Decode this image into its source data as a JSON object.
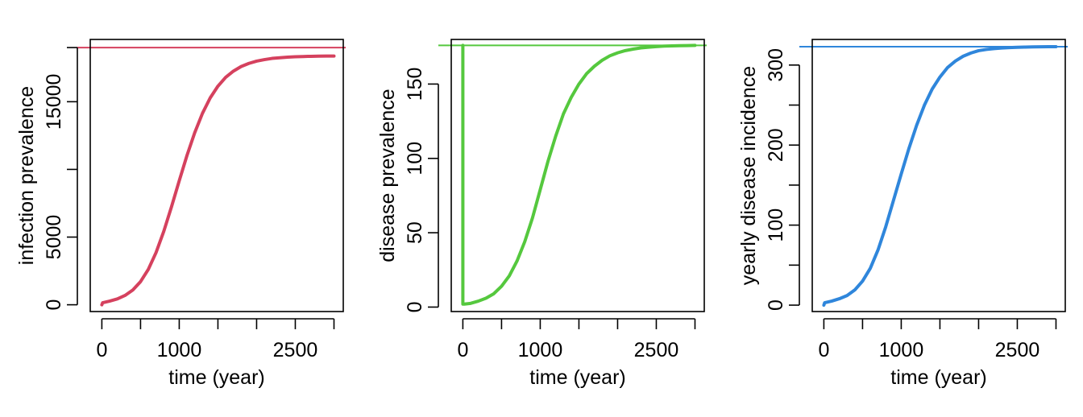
{
  "chart_data": [
    {
      "type": "line",
      "xlabel": "time (year)",
      "ylabel": "infection prevalence",
      "xlim": [
        -150,
        3120
      ],
      "ylim": [
        -500,
        19600
      ],
      "x_ticks": [
        0,
        500,
        1000,
        1500,
        2000,
        2500,
        3000
      ],
      "x_tick_labels": [
        "0",
        "",
        "1000",
        "",
        "",
        "2500",
        ""
      ],
      "y_ticks": [
        0,
        5000,
        10000,
        15000,
        19000
      ],
      "y_tick_labels": [
        "0",
        "5000",
        "",
        "15000",
        ""
      ],
      "grid": false,
      "color": "#d5415e",
      "reference_line": {
        "y": 19000
      },
      "series": [
        {
          "x": [
            0,
            10,
            100,
            200,
            300,
            400,
            500,
            600,
            700,
            800,
            900,
            1000,
            1100,
            1200,
            1300,
            1400,
            1500,
            1600,
            1700,
            1800,
            1900,
            2000,
            2100,
            2200,
            2300,
            2400,
            2500,
            2600,
            2700,
            2800,
            2900,
            3000
          ],
          "y": [
            0,
            150,
            270,
            430,
            690,
            1090,
            1710,
            2610,
            3850,
            5420,
            7240,
            9160,
            11030,
            12710,
            14140,
            15280,
            16150,
            16800,
            17260,
            17600,
            17830,
            18000,
            18110,
            18200,
            18250,
            18290,
            18320,
            18340,
            18355,
            18365,
            18372,
            18375
          ]
        }
      ]
    },
    {
      "type": "line",
      "xlabel": "time (year)",
      "ylabel": "disease prevalence",
      "xlim": [
        -150,
        3120
      ],
      "ylim": [
        -3,
        180
      ],
      "x_ticks": [
        0,
        500,
        1000,
        1500,
        2000,
        2500,
        3000
      ],
      "x_tick_labels": [
        "0",
        "",
        "1000",
        "",
        "",
        "2500",
        ""
      ],
      "y_ticks": [
        0,
        50,
        100,
        150
      ],
      "y_tick_labels": [
        "0",
        "50",
        "100",
        "150"
      ],
      "grid": false,
      "color": "#55c83e",
      "reference_line": {
        "y": 176
      },
      "series": [
        {
          "x": [
            0,
            0.1,
            20,
            100,
            200,
            300,
            400,
            500,
            600,
            700,
            800,
            900,
            1000,
            1100,
            1200,
            1300,
            1400,
            1500,
            1600,
            1700,
            1800,
            1900,
            2000,
            2100,
            2200,
            2300,
            2400,
            2500,
            2600,
            2700,
            2800,
            2900,
            3000
          ],
          "y": [
            176,
            2,
            2,
            2.5,
            4,
            6,
            9,
            14,
            21,
            31,
            44,
            60,
            79,
            98,
            115,
            130,
            141,
            150,
            157,
            162,
            166,
            169,
            171,
            172.5,
            173.5,
            174.3,
            174.8,
            175.2,
            175.5,
            175.7,
            175.8,
            175.9,
            176
          ]
        }
      ]
    },
    {
      "type": "line",
      "xlabel": "time (year)",
      "ylabel": "yearly disease incidence",
      "xlim": [
        -150,
        3120
      ],
      "ylim": [
        -8,
        332
      ],
      "x_ticks": [
        0,
        500,
        1000,
        1500,
        2000,
        2500,
        3000
      ],
      "x_tick_labels": [
        "0",
        "",
        "1000",
        "",
        "",
        "2500",
        ""
      ],
      "y_ticks": [
        0,
        50,
        100,
        150,
        200,
        250,
        300
      ],
      "y_tick_labels": [
        "0",
        "",
        "100",
        "",
        "200",
        "",
        "300"
      ],
      "grid": false,
      "color": "#2f86db",
      "reference_line": {
        "y": 323
      },
      "series": [
        {
          "x": [
            0,
            10,
            100,
            200,
            300,
            400,
            500,
            600,
            700,
            800,
            900,
            1000,
            1100,
            1200,
            1300,
            1400,
            1500,
            1600,
            1700,
            1800,
            1900,
            2000,
            2100,
            2200,
            2300,
            2400,
            2500,
            2600,
            2700,
            2800,
            2900,
            3000
          ],
          "y": [
            0,
            3,
            5,
            8,
            12,
            19,
            30,
            46,
            69,
            98,
            131,
            164,
            196,
            225,
            250,
            270,
            285,
            297,
            305,
            311,
            315,
            318,
            319.5,
            320.5,
            321.3,
            321.8,
            322.2,
            322.5,
            322.7,
            322.8,
            322.9,
            323
          ]
        }
      ]
    }
  ]
}
